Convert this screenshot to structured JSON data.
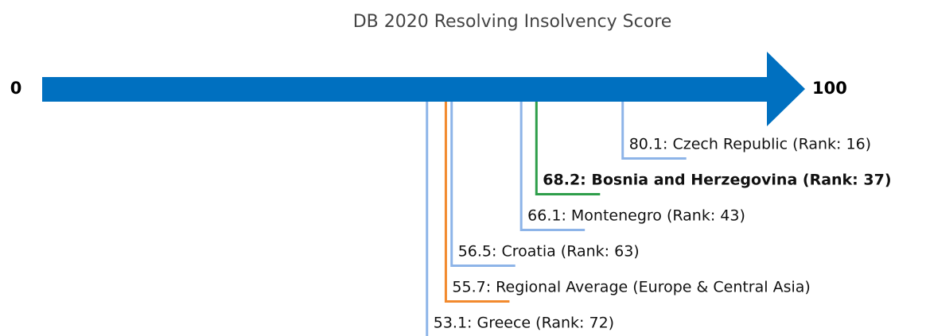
{
  "chart_data": {
    "type": "number-line",
    "title": "DB 2020 Resolving Insolvency Score",
    "xlim": [
      0,
      100
    ],
    "xticks": [
      0,
      100
    ],
    "axis_color": "#0070c0",
    "values": [
      80.1,
      68.2,
      66.1,
      56.5,
      55.7,
      53.1
    ],
    "value_labels": [
      "80.1: Czech Republic (Rank: 16)",
      "68.2: Bosnia and Herzegovina (Rank: 37)",
      "66.1: Montenegro (Rank: 43)",
      "56.5: Croatia (Rank: 63)",
      "55.7: Regional Average (Europe & Central Asia)",
      "53.1: Greece (Rank: 72)"
    ],
    "colors": [
      "#8db4e8",
      "#2e9e4a",
      "#8db4e8",
      "#8db4e8",
      "#f28a2e",
      "#8db4e8"
    ],
    "bold": [
      false,
      true,
      false,
      false,
      false,
      false
    ]
  }
}
